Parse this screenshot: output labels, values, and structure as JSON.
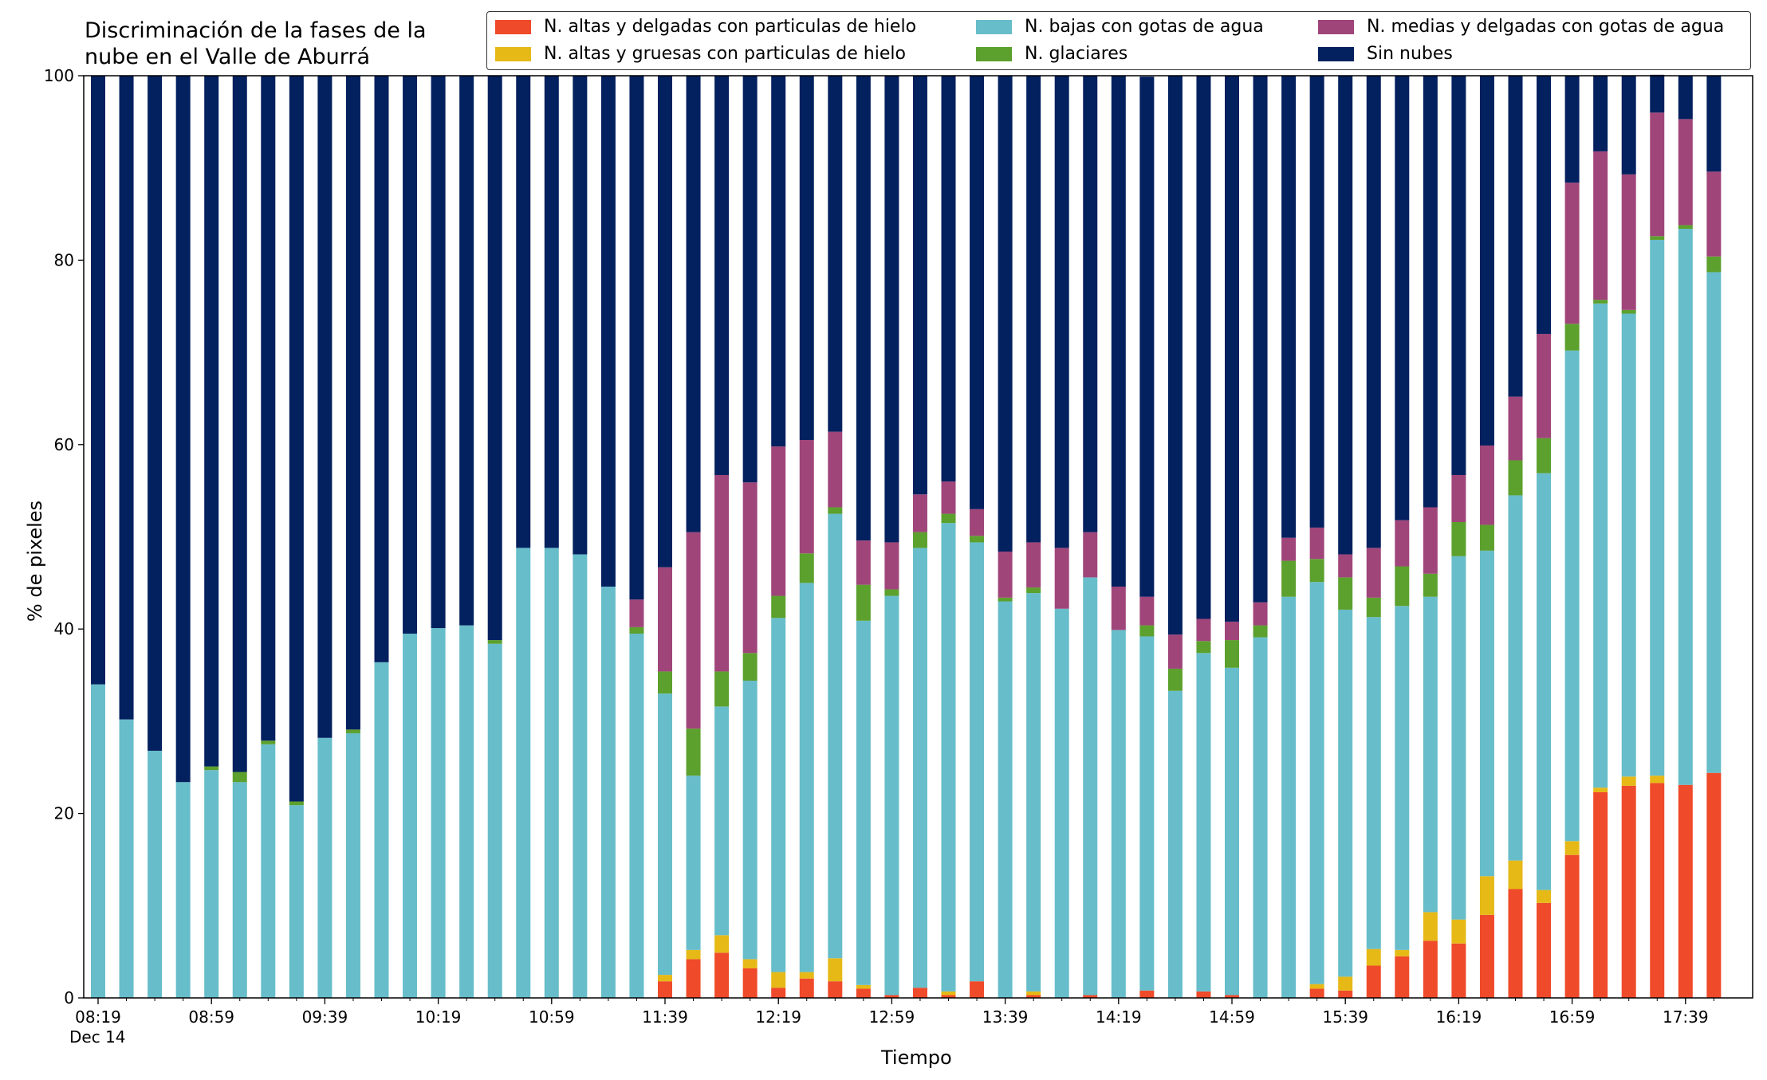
{
  "chart_data": {
    "type": "bar",
    "stacked": true,
    "title_lines": [
      "Discriminación de la fases de la",
      "nube en el Valle de Aburrá"
    ],
    "xlabel": "Tiempo",
    "ylabel": "% de pixeles",
    "ylim": [
      0,
      100
    ],
    "yticks": [
      0,
      20,
      40,
      60,
      80,
      100
    ],
    "xtick_labels": [
      {
        "index": 0,
        "label": "08:19",
        "sublabel": "Dec 14"
      },
      {
        "index": 4,
        "label": "08:59",
        "sublabel": ""
      },
      {
        "index": 8,
        "label": "09:39",
        "sublabel": ""
      },
      {
        "index": 12,
        "label": "10:19",
        "sublabel": ""
      },
      {
        "index": 16,
        "label": "10:59",
        "sublabel": ""
      },
      {
        "index": 20,
        "label": "11:39",
        "sublabel": ""
      },
      {
        "index": 24,
        "label": "12:19",
        "sublabel": ""
      },
      {
        "index": 28,
        "label": "12:59",
        "sublabel": ""
      },
      {
        "index": 32,
        "label": "13:39",
        "sublabel": ""
      },
      {
        "index": 36,
        "label": "14:19",
        "sublabel": ""
      },
      {
        "index": 40,
        "label": "14:59",
        "sublabel": ""
      },
      {
        "index": 44,
        "label": "15:39",
        "sublabel": ""
      },
      {
        "index": 48,
        "label": "16:19",
        "sublabel": ""
      },
      {
        "index": 52,
        "label": "16:59",
        "sublabel": ""
      },
      {
        "index": 56,
        "label": "17:39",
        "sublabel": ""
      }
    ],
    "legend_placement": "top",
    "series": [
      {
        "name": "N. altas y delgadas con particulas de hielo",
        "color": "#ef4a2a",
        "values": [
          0,
          0,
          0,
          0,
          0,
          0,
          0,
          0,
          0,
          0,
          0,
          0,
          0,
          0,
          0,
          0,
          0,
          0,
          0,
          0,
          1.8,
          4.2,
          4.9,
          3.2,
          1.1,
          2.1,
          1.8,
          1.0,
          0.3,
          1.1,
          0.3,
          1.8,
          0,
          0.3,
          0,
          0.3,
          0,
          0.8,
          0,
          0.7,
          0.3,
          0,
          0,
          1.0,
          0.8,
          3.5,
          4.5,
          6.2,
          5.9,
          9.0,
          11.8,
          10.3,
          15.5,
          22.3,
          23.0,
          23.3,
          23.1,
          24.4
        ]
      },
      {
        "name": "N. altas y gruesas con particulas de hielo",
        "color": "#e6b917",
        "values": [
          0,
          0,
          0,
          0,
          0,
          0,
          0,
          0,
          0,
          0,
          0,
          0,
          0,
          0,
          0,
          0,
          0,
          0,
          0,
          0,
          0.7,
          1.0,
          1.9,
          1.0,
          1.7,
          0.7,
          2.5,
          0.4,
          0,
          0,
          0.4,
          0,
          0,
          0.4,
          0,
          0,
          0,
          0,
          0,
          0,
          0,
          0,
          0,
          0.5,
          1.5,
          1.8,
          0.7,
          3.1,
          2.6,
          4.2,
          3.1,
          1.4,
          1.5,
          0.5,
          1.0,
          0.8,
          0,
          0
        ]
      },
      {
        "name": "N. bajas con gotas de agua",
        "color": "#67bdca",
        "values": [
          34.0,
          30.2,
          26.8,
          23.4,
          24.7,
          23.4,
          27.5,
          20.9,
          28.2,
          28.7,
          36.4,
          39.5,
          40.1,
          40.4,
          38.4,
          48.8,
          48.8,
          48.1,
          44.6,
          39.5,
          30.5,
          18.9,
          24.8,
          30.2,
          38.4,
          42.2,
          48.2,
          39.5,
          43.3,
          47.7,
          50.8,
          47.6,
          43.0,
          43.2,
          42.2,
          45.3,
          39.9,
          38.4,
          33.3,
          36.7,
          35.5,
          39.1,
          43.5,
          43.6,
          39.8,
          36.0,
          37.3,
          34.2,
          39.4,
          35.3,
          39.6,
          45.2,
          53.2,
          52.5,
          50.2,
          58.1,
          60.3,
          54.3
        ]
      },
      {
        "name": "N. glaciares",
        "color": "#5ca02d",
        "values": [
          0,
          0,
          0,
          0,
          0.4,
          1.1,
          0.4,
          0.4,
          0,
          0.4,
          0,
          0,
          0,
          0,
          0.4,
          0,
          0,
          0,
          0,
          0.7,
          2.4,
          5.1,
          3.8,
          3.0,
          2.4,
          3.2,
          0.7,
          3.9,
          0.7,
          1.7,
          1.0,
          0.7,
          0.4,
          0.6,
          0,
          0,
          0,
          1.2,
          2.4,
          1.3,
          3.0,
          1.3,
          3.9,
          2.5,
          3.5,
          2.1,
          4.3,
          2.5,
          3.7,
          2.8,
          3.8,
          3.8,
          2.9,
          0.4,
          0.4,
          0.4,
          0.4,
          1.7
        ]
      },
      {
        "name": "N. medias y delgadas con gotas de agua",
        "color": "#a0457a",
        "values": [
          0,
          0,
          0,
          0,
          0,
          0,
          0,
          0,
          0,
          0,
          0,
          0,
          0,
          0,
          0,
          0,
          0,
          0,
          0,
          3.0,
          11.3,
          21.3,
          21.3,
          18.5,
          16.2,
          12.3,
          8.2,
          4.8,
          5.1,
          4.1,
          3.5,
          2.9,
          5.0,
          4.9,
          6.6,
          4.9,
          4.7,
          3.1,
          3.7,
          2.4,
          2.0,
          2.5,
          2.5,
          3.4,
          2.5,
          5.4,
          5.0,
          7.2,
          5.1,
          8.6,
          6.9,
          11.3,
          15.3,
          16.1,
          14.7,
          13.4,
          11.5,
          9.2
        ]
      },
      {
        "name": "Sin nubes",
        "color": "#03205f",
        "values": [
          66.0,
          69.8,
          73.2,
          76.6,
          74.9,
          75.5,
          72.1,
          78.7,
          71.8,
          70.9,
          63.6,
          60.5,
          59.9,
          59.6,
          61.2,
          51.2,
          51.2,
          51.9,
          55.4,
          56.8,
          53.3,
          49.5,
          43.3,
          44.1,
          40.2,
          39.5,
          38.6,
          50.4,
          50.6,
          45.4,
          44.0,
          47.0,
          51.6,
          50.6,
          51.2,
          49.5,
          55.4,
          56.4,
          60.6,
          58.9,
          59.2,
          57.1,
          50.1,
          49.0,
          51.9,
          51.2,
          48.2,
          46.8,
          43.3,
          40.1,
          34.8,
          28.0,
          11.6,
          8.2,
          10.7,
          4.1,
          4.7,
          10.4
        ]
      }
    ]
  }
}
